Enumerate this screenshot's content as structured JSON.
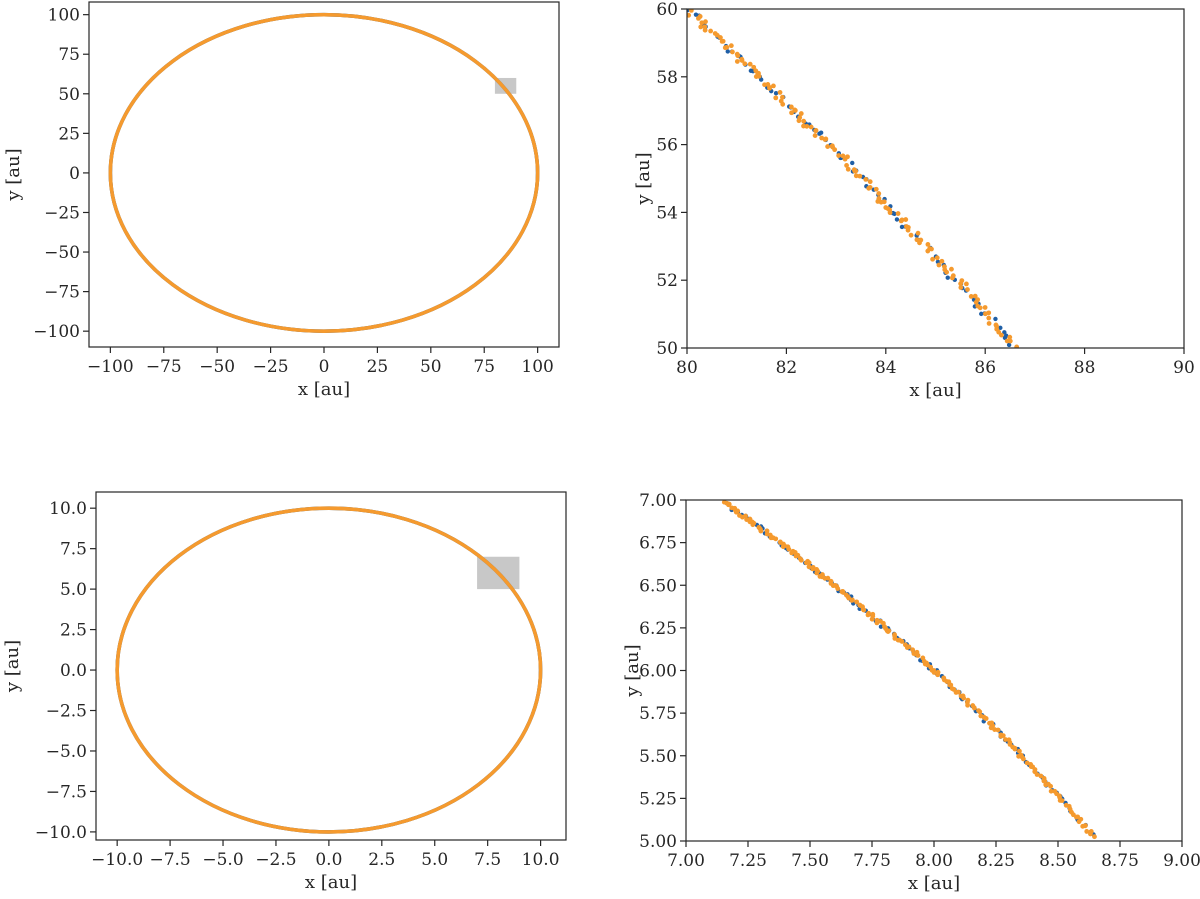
{
  "chart_data": [
    {
      "id": "top-left",
      "type": "scatter",
      "title": "",
      "xlabel": "x [au]",
      "ylabel": "y [au]",
      "xlim": [
        -110,
        110
      ],
      "ylim": [
        -110,
        108
      ],
      "xticks": [
        -100,
        -75,
        -50,
        -25,
        0,
        25,
        50,
        75,
        100
      ],
      "yticks": [
        -100,
        -75,
        -50,
        -25,
        0,
        25,
        50,
        75,
        100
      ],
      "xtick_labels": [
        "−100",
        "−75",
        "−50",
        "−25",
        "0",
        "25",
        "50",
        "75",
        "100"
      ],
      "ytick_labels": [
        "−100",
        "−75",
        "−50",
        "−25",
        "0",
        "25",
        "50",
        "75",
        "100"
      ],
      "grid": false,
      "series": [
        {
          "color": "#1f5fa6",
          "shape": "ellipse",
          "center": [
            0,
            0
          ],
          "radius_x": 100,
          "radius_y": 100
        },
        {
          "color": "#f59a2e",
          "shape": "ellipse",
          "center": [
            0,
            0
          ],
          "radius_x": 100,
          "radius_y": 100
        }
      ],
      "highlight_region": {
        "x": [
          80,
          90
        ],
        "y": [
          50,
          60
        ],
        "color": "#c8c8c8"
      }
    },
    {
      "id": "top-right",
      "type": "scatter",
      "title": "",
      "xlabel": "x [au]",
      "ylabel": "y [au]",
      "xlim": [
        80,
        90
      ],
      "ylim": [
        50,
        60
      ],
      "xticks": [
        80,
        82,
        84,
        86,
        88,
        90
      ],
      "yticks": [
        50,
        52,
        54,
        56,
        58,
        60
      ],
      "xtick_labels": [
        "80",
        "82",
        "84",
        "86",
        "88",
        "90"
      ],
      "ytick_labels": [
        "50",
        "52",
        "54",
        "56",
        "58",
        "60"
      ],
      "grid": false,
      "series": [
        {
          "color": "#1f5fa6",
          "shape": "arc",
          "radius": 100,
          "x_range": [
            80,
            86.6
          ],
          "points": 80
        },
        {
          "color": "#f59a2e",
          "shape": "arc",
          "radius": 100,
          "x_range": [
            80,
            86.6
          ],
          "points": 140
        }
      ]
    },
    {
      "id": "bottom-left",
      "type": "scatter",
      "title": "",
      "xlabel": "x [au]",
      "ylabel": "y [au]",
      "xlim": [
        -11,
        11.2
      ],
      "ylim": [
        -10.5,
        11
      ],
      "xticks": [
        -10,
        -7.5,
        -5,
        -2.5,
        0,
        2.5,
        5,
        7.5,
        10
      ],
      "yticks": [
        -10,
        -7.5,
        -5,
        -2.5,
        0,
        2.5,
        5,
        7.5,
        10
      ],
      "xtick_labels": [
        "−10.0",
        "−7.5",
        "−5.0",
        "−2.5",
        "0.0",
        "2.5",
        "5.0",
        "7.5",
        "10.0"
      ],
      "ytick_labels": [
        "−10.0",
        "−7.5",
        "−5.0",
        "−2.5",
        "0.0",
        "2.5",
        "5.0",
        "7.5",
        "10.0"
      ],
      "grid": false,
      "series": [
        {
          "color": "#1f5fa6",
          "shape": "ellipse",
          "center": [
            0,
            0
          ],
          "radius_x": 10,
          "radius_y": 10
        },
        {
          "color": "#f59a2e",
          "shape": "ellipse",
          "center": [
            0,
            0
          ],
          "radius_x": 10,
          "radius_y": 10
        }
      ],
      "highlight_region": {
        "x": [
          7,
          9
        ],
        "y": [
          5,
          7
        ],
        "color": "#c8c8c8"
      }
    },
    {
      "id": "bottom-right",
      "type": "scatter",
      "title": "",
      "xlabel": "x [au]",
      "ylabel": "y [au]",
      "xlim": [
        7,
        9
      ],
      "ylim": [
        5,
        7
      ],
      "xticks": [
        7,
        7.25,
        7.5,
        7.75,
        8,
        8.25,
        8.5,
        8.75,
        9
      ],
      "yticks": [
        5,
        5.25,
        5.5,
        5.75,
        6,
        6.25,
        6.5,
        6.75,
        7
      ],
      "xtick_labels": [
        "7.00",
        "7.25",
        "7.50",
        "7.75",
        "8.00",
        "8.25",
        "8.50",
        "8.75",
        "9.00"
      ],
      "ytick_labels": [
        "5.00",
        "5.25",
        "5.50",
        "5.75",
        "6.00",
        "6.25",
        "6.50",
        "6.75",
        "7.00"
      ],
      "grid": false,
      "series": [
        {
          "color": "#1f5fa6",
          "shape": "arc",
          "radius": 10,
          "x_range": [
            7.15,
            8.65
          ],
          "points": 110
        },
        {
          "color": "#f59a2e",
          "shape": "arc",
          "radius": 10,
          "x_range": [
            7.15,
            8.65
          ],
          "points": 200
        }
      ]
    }
  ]
}
